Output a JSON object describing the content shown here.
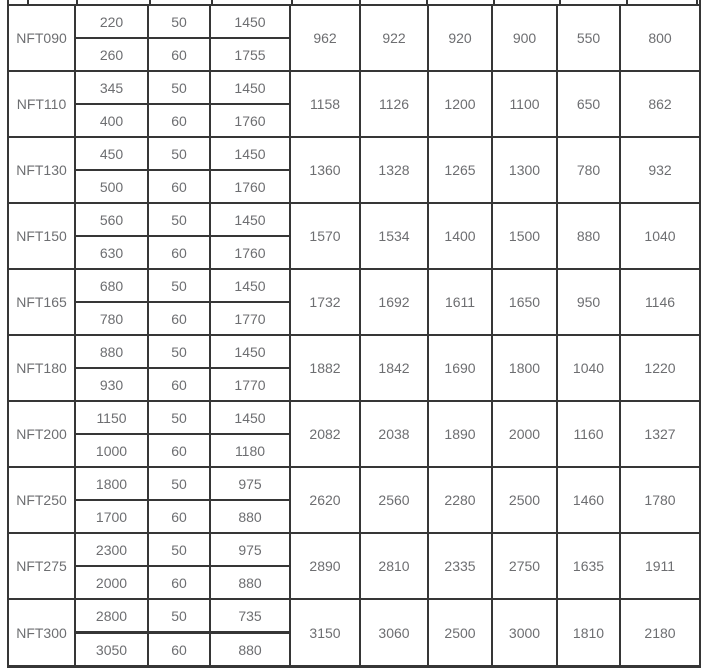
{
  "colors": {
    "border": "#363636",
    "text": "#6d6e71"
  },
  "table": {
    "rows": [
      {
        "model": "NFT090",
        "sub": [
          [
            "220",
            "50",
            "1450"
          ],
          [
            "260",
            "60",
            "1755"
          ]
        ],
        "merged": [
          "962",
          "922",
          "920",
          "900",
          "550",
          "800"
        ]
      },
      {
        "model": "NFT110",
        "sub": [
          [
            "345",
            "50",
            "1450"
          ],
          [
            "400",
            "60",
            "1760"
          ]
        ],
        "merged": [
          "1158",
          "1126",
          "1200",
          "1100",
          "650",
          "862"
        ]
      },
      {
        "model": "NFT130",
        "sub": [
          [
            "450",
            "50",
            "1450"
          ],
          [
            "500",
            "60",
            "1760"
          ]
        ],
        "merged": [
          "1360",
          "1328",
          "1265",
          "1300",
          "780",
          "932"
        ]
      },
      {
        "model": "NFT150",
        "sub": [
          [
            "560",
            "50",
            "1450"
          ],
          [
            "630",
            "60",
            "1760"
          ]
        ],
        "merged": [
          "1570",
          "1534",
          "1400",
          "1500",
          "880",
          "1040"
        ]
      },
      {
        "model": "NFT165",
        "sub": [
          [
            "680",
            "50",
            "1450"
          ],
          [
            "780",
            "60",
            "1770"
          ]
        ],
        "merged": [
          "1732",
          "1692",
          "1611",
          "1650",
          "950",
          "1146"
        ]
      },
      {
        "model": "NFT180",
        "sub": [
          [
            "880",
            "50",
            "1450"
          ],
          [
            "930",
            "60",
            "1770"
          ]
        ],
        "merged": [
          "1882",
          "1842",
          "1690",
          "1800",
          "1040",
          "1220"
        ]
      },
      {
        "model": "NFT200",
        "sub": [
          [
            "1150",
            "50",
            "1450"
          ],
          [
            "1000",
            "60",
            "1180"
          ]
        ],
        "merged": [
          "2082",
          "2038",
          "1890",
          "2000",
          "1160",
          "1327"
        ]
      },
      {
        "model": "NFT250",
        "sub": [
          [
            "1800",
            "50",
            "975"
          ],
          [
            "1700",
            "60",
            "880"
          ]
        ],
        "merged": [
          "2620",
          "2560",
          "2280",
          "2500",
          "1460",
          "1780"
        ]
      },
      {
        "model": "NFT275",
        "sub": [
          [
            "2300",
            "50",
            "975"
          ],
          [
            "2000",
            "60",
            "880"
          ]
        ],
        "merged": [
          "2890",
          "2810",
          "2335",
          "2750",
          "1635",
          "1911"
        ]
      },
      {
        "model": "NFT300",
        "sub": [
          [
            "2800",
            "50",
            "735"
          ],
          [
            "3050",
            "60",
            "880"
          ]
        ],
        "merged": [
          "3150",
          "3060",
          "2500",
          "3000",
          "1810",
          "2180"
        ]
      }
    ]
  }
}
